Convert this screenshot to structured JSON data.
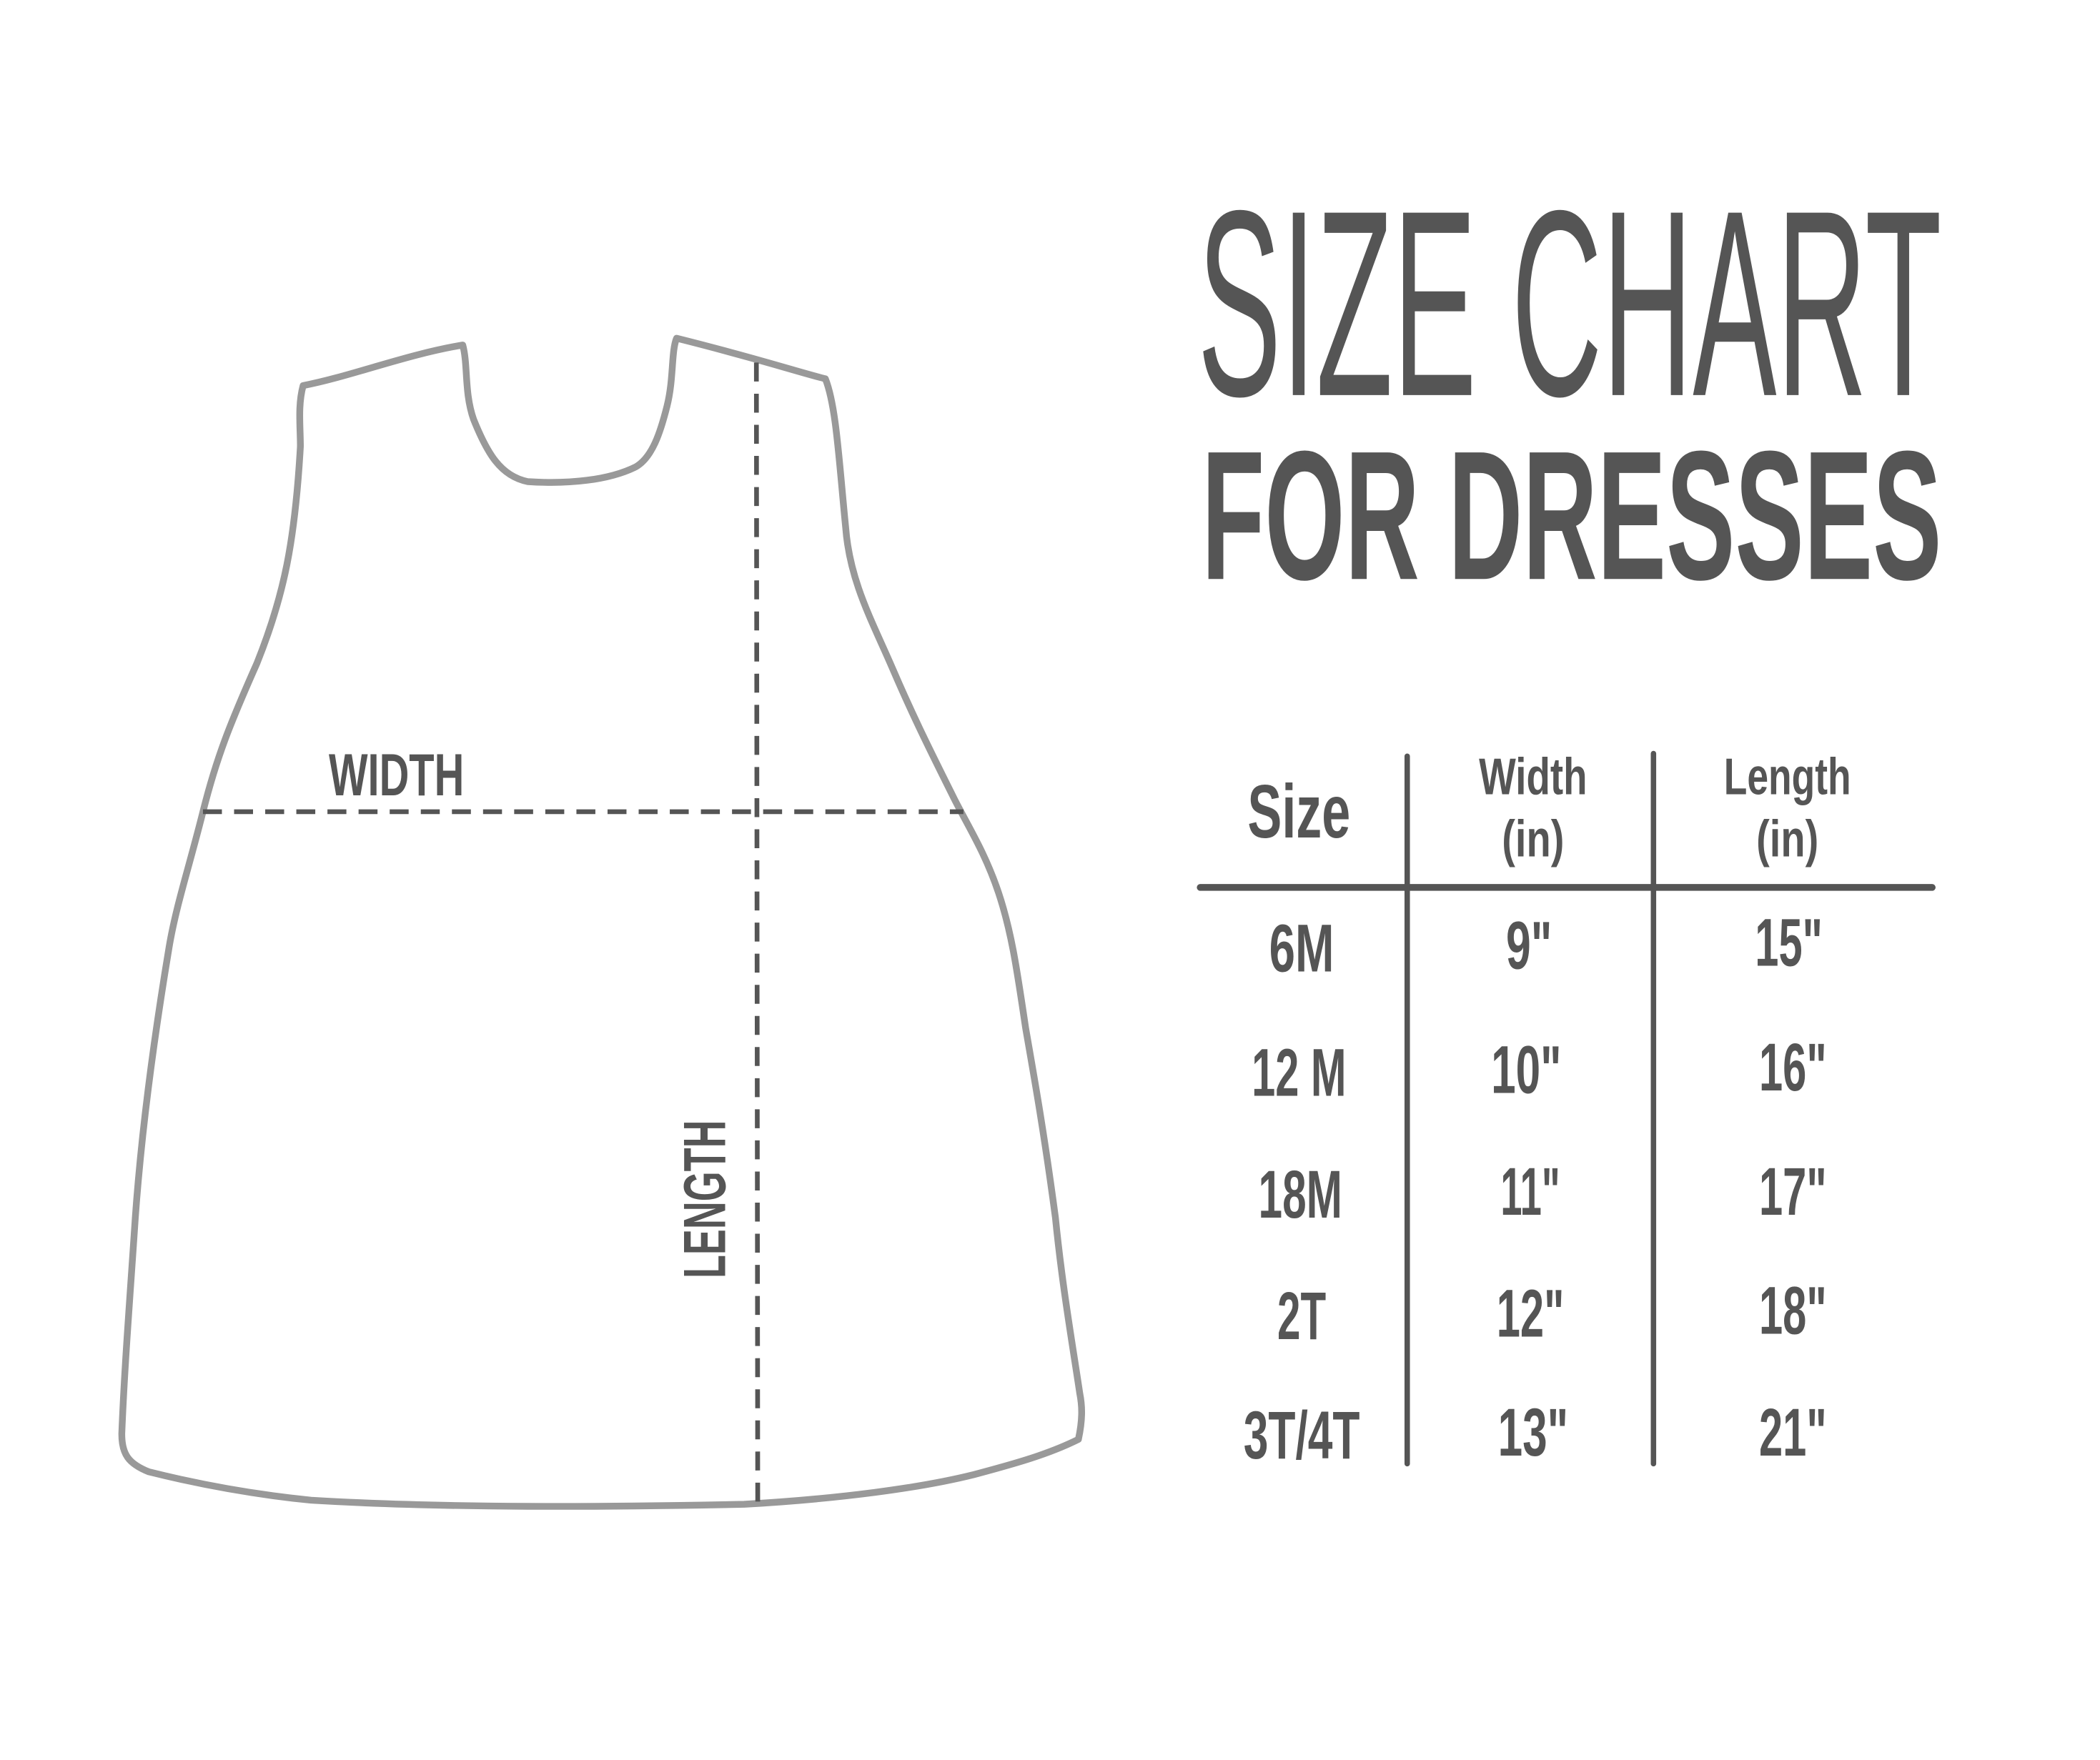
{
  "title": {
    "line1": "SIZE CHART",
    "line2": "FOR DRESSES"
  },
  "diagram": {
    "width_label": "WIDTH",
    "length_label": "LENGTH",
    "outline_color": "#999999",
    "dash_color": "#555555"
  },
  "table": {
    "headers": [
      {
        "line1": "Size",
        "line2": ""
      },
      {
        "line1": "Width",
        "line2": "(in)"
      },
      {
        "line1": "Length",
        "line2": "(in)"
      }
    ],
    "rows": [
      {
        "size": "6M",
        "width": "9\"",
        "length": "15\""
      },
      {
        "size": "12 M",
        "width": "10\"",
        "length": "16\""
      },
      {
        "size": "18M",
        "width": "11\"",
        "length": "17\""
      },
      {
        "size": "2T",
        "width": "12\"",
        "length": "18\""
      },
      {
        "size": "3T/4T",
        "width": "13\"",
        "length": "21\""
      }
    ]
  },
  "colors": {
    "text": "#555555",
    "outline": "#999999"
  }
}
